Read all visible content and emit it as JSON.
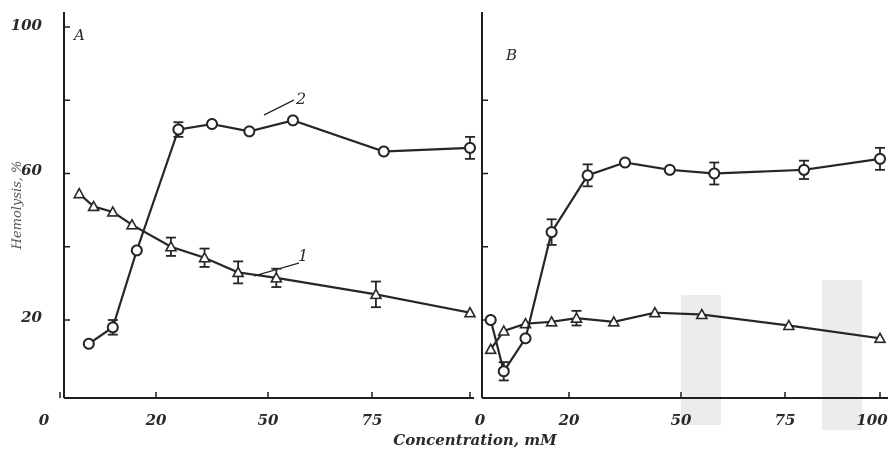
{
  "chart_data": [
    {
      "type": "line",
      "panel_label": "A",
      "ylabel": "Hemolysis, %",
      "xlabel": "",
      "xlim": [
        0,
        100
      ],
      "ylim": [
        0,
        100
      ],
      "x_ticks": [
        "0",
        "20",
        "50",
        "75"
      ],
      "y_ticks": [
        "100",
        "60",
        "20"
      ],
      "grid": false,
      "series": [
        {
          "name": "1",
          "marker": "triangle",
          "x": [
            4,
            7,
            11,
            15,
            24,
            33,
            42,
            52,
            76,
            100
          ],
          "y": [
            54.5,
            51,
            49.5,
            46,
            40,
            37,
            33,
            31.5,
            27,
            22
          ],
          "err": [
            0,
            0,
            0,
            0,
            2.5,
            2.5,
            3,
            2.5,
            3.5,
            0
          ]
        },
        {
          "name": "2",
          "marker": "circle",
          "x": [
            6,
            11,
            16,
            26,
            35,
            45,
            56,
            78,
            100
          ],
          "y": [
            13.5,
            18,
            39,
            72,
            73.5,
            71.5,
            74.5,
            66,
            67
          ],
          "err": [
            0,
            2,
            0,
            2,
            0,
            0,
            0,
            0,
            3
          ]
        }
      ],
      "annotations": [
        "1",
        "2"
      ]
    },
    {
      "type": "line",
      "panel_label": "B",
      "ylabel": "",
      "xlabel": "Concentration, mM",
      "xlim": [
        0,
        100
      ],
      "ylim": [
        0,
        100
      ],
      "x_ticks": [
        "0",
        "20",
        "50",
        "75",
        "100"
      ],
      "grid": false,
      "series": [
        {
          "name": "",
          "marker": "triangle",
          "x": [
            2,
            5,
            10,
            16,
            22,
            32,
            43,
            55,
            76,
            100
          ],
          "y": [
            12,
            17,
            19,
            19.5,
            20.5,
            19.5,
            22,
            21.5,
            18.5,
            15
          ],
          "err": [
            0,
            0,
            0,
            0,
            2,
            0,
            0,
            0,
            0,
            0
          ]
        },
        {
          "name": "",
          "marker": "circle",
          "x": [
            2,
            5,
            10,
            16,
            25,
            35,
            47,
            58,
            80,
            100
          ],
          "y": [
            20,
            6,
            15,
            44,
            59.5,
            63,
            61,
            60,
            61,
            64
          ],
          "err": [
            0,
            2.5,
            0,
            3.5,
            3,
            0,
            0,
            3,
            2.5,
            3
          ]
        }
      ]
    }
  ]
}
